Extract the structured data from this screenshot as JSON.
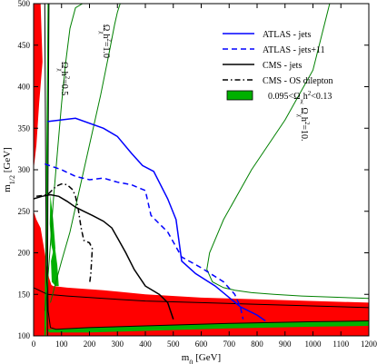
{
  "chart_data": {
    "type": "line",
    "xlabel": "m",
    "xlabel_sub": "0",
    "xlabel_unit": " [GeV]",
    "ylabel": "m",
    "ylabel_sub": "1/2",
    "ylabel_unit": " [GeV]",
    "xlim": [
      0,
      1200
    ],
    "ylim": [
      100,
      500
    ],
    "xticks": [
      0,
      100,
      200,
      300,
      400,
      500,
      600,
      700,
      800,
      900,
      1000,
      1100,
      1200
    ],
    "yticks": [
      100,
      150,
      200,
      250,
      300,
      350,
      400,
      450,
      500
    ],
    "legend_position": "top-right",
    "colors": {
      "excluded": "#ff0000",
      "relic_band": "#00b000",
      "relic_contour": "#008000",
      "atlas": "#0000ff",
      "cms": "#000000"
    },
    "series": [
      {
        "name": "ATLAS - jets",
        "style": "solid",
        "color": "#0000ff",
        "x": [
          50,
          150,
          250,
          300,
          350,
          390,
          430,
          480,
          510,
          530,
          580,
          650,
          740,
          800,
          830
        ],
        "y": [
          358,
          362,
          350,
          340,
          320,
          305,
          298,
          265,
          240,
          190,
          175,
          160,
          135,
          125,
          118
        ]
      },
      {
        "name": "ATLAS - jets+11",
        "style": "dashed",
        "color": "#0000ff",
        "x": [
          40,
          100,
          150,
          200,
          250,
          300,
          350,
          400,
          420,
          450,
          480,
          530,
          600,
          680,
          720,
          740,
          750
        ],
        "y": [
          307,
          300,
          292,
          288,
          290,
          285,
          282,
          275,
          245,
          235,
          225,
          195,
          182,
          165,
          150,
          135,
          120
        ]
      },
      {
        "name": "CMS - jets",
        "style": "solid",
        "color": "#000000",
        "x": [
          0,
          30,
          60,
          90,
          120,
          150,
          180,
          210,
          250,
          280,
          300,
          330,
          360,
          400,
          450,
          480,
          500
        ],
        "y": [
          265,
          268,
          270,
          268,
          262,
          255,
          250,
          245,
          238,
          230,
          218,
          200,
          180,
          160,
          150,
          140,
          120
        ]
      },
      {
        "name": "CMS - OS dilepton",
        "style": "dashdot",
        "color": "#000000",
        "x": [
          10,
          50,
          80,
          100,
          120,
          140,
          150,
          160,
          170,
          180,
          200,
          210,
          205,
          200
        ],
        "y": [
          268,
          270,
          280,
          283,
          282,
          276,
          268,
          252,
          230,
          215,
          212,
          205,
          175,
          162
        ]
      }
    ],
    "relic_contours": [
      {
        "label": "Ωχh²=0.5",
        "x": [
          40,
          50,
          60,
          70,
          85,
          100,
          115,
          130,
          150,
          175,
          200,
          210
        ],
        "y": [
          130,
          165,
          210,
          260,
          320,
          380,
          430,
          470,
          495,
          500,
          500,
          500
        ]
      },
      {
        "label": "Ωχh²=1.0",
        "x": [
          60,
          80,
          100,
          130,
          160,
          200,
          240,
          270,
          290,
          300,
          310
        ],
        "y": [
          140,
          165,
          190,
          225,
          270,
          330,
          390,
          440,
          475,
          490,
          500
        ]
      },
      {
        "label": "Ωχh²=10.",
        "x": [
          1060,
          1000,
          900,
          780,
          680,
          630,
          620,
          640,
          680,
          720,
          780,
          860,
          960,
          1200
        ],
        "y": [
          500,
          420,
          360,
          300,
          240,
          200,
          180,
          165,
          158,
          155,
          152,
          150,
          148,
          145
        ]
      }
    ],
    "legend": [
      {
        "label": "ATLAS - jets",
        "style": "solid",
        "color": "#0000ff"
      },
      {
        "label": "ATLAS - jets+11",
        "style": "dashed",
        "color": "#0000ff"
      },
      {
        "label": "CMS - jets",
        "style": "solid",
        "color": "#000000"
      },
      {
        "label": "CMS - OS dilepton",
        "style": "dashdot",
        "color": "#000000"
      },
      {
        "label": "0.095<Ωχh²<0.13",
        "style": "fill",
        "color": "#00b000"
      }
    ]
  }
}
